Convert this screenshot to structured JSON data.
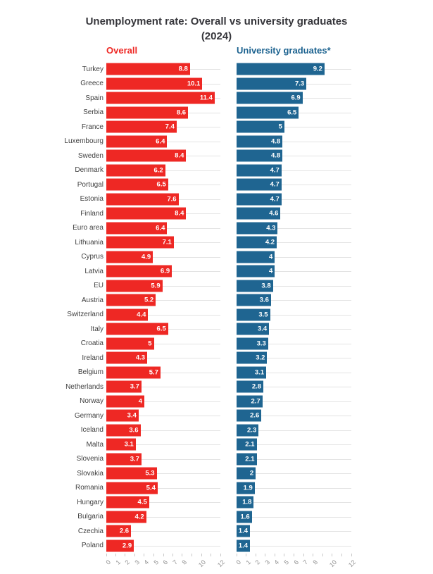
{
  "title": {
    "line1": "Unemployment rate: Overall vs university graduates",
    "line2": "(2024)"
  },
  "columns": {
    "left_header": "Overall",
    "right_header": "University graduates*"
  },
  "colors": {
    "overall_bar": "#ee2824",
    "graduates_bar": "#1f6591",
    "overall_header": "#ee2824",
    "graduates_header": "#1d6390",
    "title_text": "#36363b",
    "category_label": "#3f3f3f",
    "value_label": "#ffffff",
    "guide_line": "#e3e3e3",
    "tick_mark": "#c9c9c9",
    "tick_label": "#8f8f8f",
    "background": "#ffffff"
  },
  "axis": {
    "min": 0,
    "max": 12,
    "ticks": [
      0,
      1,
      2,
      3,
      4,
      5,
      6,
      7,
      8,
      9,
      10,
      11,
      12
    ],
    "labeled_ticks": [
      0,
      1,
      2,
      3,
      4,
      5,
      6,
      7,
      8,
      10,
      12
    ],
    "label_rotation_deg": -45
  },
  "chart_data": {
    "type": "bar",
    "orientation": "horizontal",
    "title": "Unemployment rate: Overall vs university graduates (2024)",
    "xlim": [
      0,
      12
    ],
    "grid": "row-guide-lines",
    "value_labels": "inside-end-white",
    "categories": [
      "Turkey",
      "Greece",
      "Spain",
      "Serbia",
      "France",
      "Luxembourg",
      "Sweden",
      "Denmark",
      "Portugal",
      "Estonia",
      "Finland",
      "Euro area",
      "Lithuania",
      "Cyprus",
      "Latvia",
      "EU",
      "Austria",
      "Switzerland",
      "Italy",
      "Croatia",
      "Ireland",
      "Belgium",
      "Netherlands",
      "Norway",
      "Germany",
      "Iceland",
      "Malta",
      "Slovenia",
      "Slovakia",
      "Romania",
      "Hungary",
      "Bulgaria",
      "Czechia",
      "Poland"
    ],
    "series": [
      {
        "name": "Overall",
        "color": "#ee2824",
        "values": [
          8.8,
          10.1,
          11.4,
          8.6,
          7.4,
          6.4,
          8.4,
          6.2,
          6.5,
          7.6,
          8.4,
          6.4,
          7.1,
          4.9,
          6.9,
          5.9,
          5.2,
          4.4,
          6.5,
          5,
          4.3,
          5.7,
          3.7,
          4,
          3.4,
          3.6,
          3.1,
          3.7,
          5.3,
          5.4,
          4.5,
          4.2,
          2.6,
          2.9
        ]
      },
      {
        "name": "University graduates*",
        "color": "#1f6591",
        "values": [
          9.2,
          7.3,
          6.9,
          6.5,
          5,
          4.8,
          4.8,
          4.7,
          4.7,
          4.7,
          4.6,
          4.3,
          4.2,
          4,
          4,
          3.8,
          3.6,
          3.5,
          3.4,
          3.3,
          3.2,
          3.1,
          2.8,
          2.7,
          2.6,
          2.3,
          2.1,
          2.1,
          2,
          1.9,
          1.8,
          1.6,
          1.4,
          1.4
        ]
      }
    ]
  }
}
